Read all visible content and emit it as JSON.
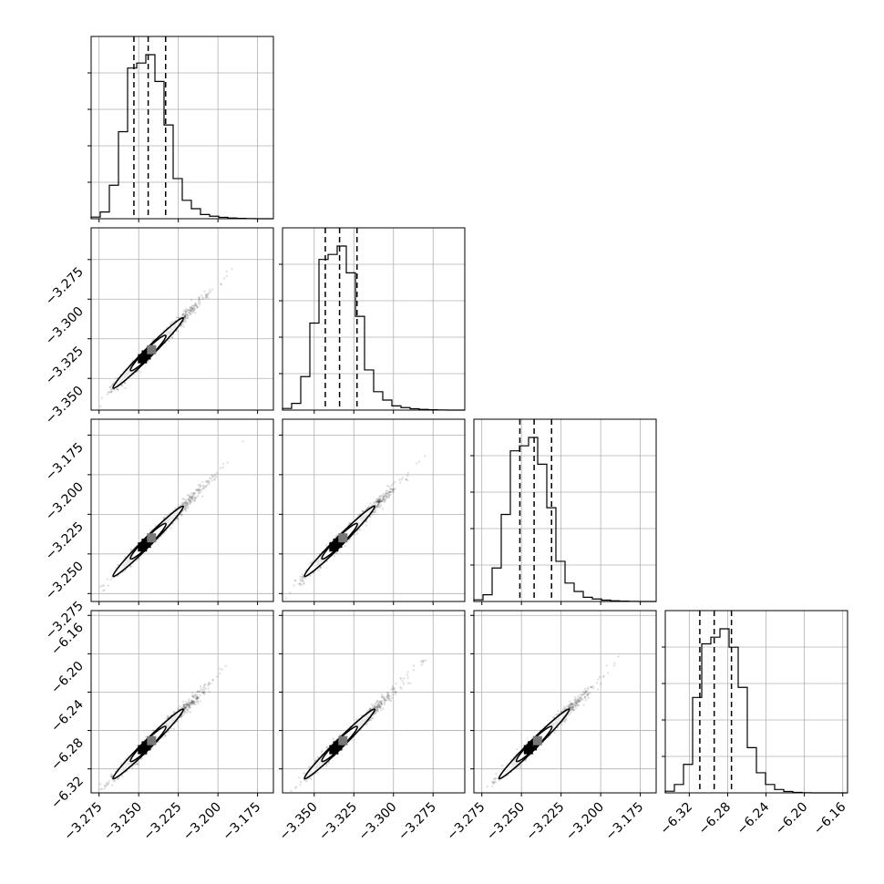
{
  "chart_data": {
    "type": "corner",
    "parameters": [
      {
        "range": [
          -3.28,
          -3.165
        ],
        "ticks": [
          -3.275,
          -3.25,
          -3.225,
          -3.2,
          -3.175
        ],
        "tick_labels": [
          "−3.275",
          "−3.250",
          "−3.225",
          "−3.200",
          "−3.175"
        ],
        "quantiles": [
          -3.253,
          -3.244,
          -3.233
        ],
        "hist": [
          0.01,
          0.04,
          0.2,
          0.52,
          0.9,
          0.93,
          0.98,
          0.82,
          0.56,
          0.24,
          0.11,
          0.06,
          0.025,
          0.015,
          0.008,
          0.004,
          0.002,
          0.001,
          0.0,
          0.0
        ]
      },
      {
        "range": [
          -3.37,
          -3.255
        ],
        "ticks": [
          -3.35,
          -3.325,
          -3.3,
          -3.275
        ],
        "tick_labels": [
          "−3.350",
          "−3.325",
          "−3.300",
          "−3.275"
        ],
        "quantiles": [
          -3.343,
          -3.334,
          -3.323
        ],
        "hist": [
          0.01,
          0.04,
          0.2,
          0.52,
          0.9,
          0.93,
          0.98,
          0.82,
          0.56,
          0.24,
          0.11,
          0.06,
          0.025,
          0.015,
          0.008,
          0.004,
          0.002,
          0.001,
          0.0,
          0.0
        ]
      },
      {
        "range": [
          -3.28,
          -3.165
        ],
        "ticks": [
          -3.275,
          -3.25,
          -3.225,
          -3.2,
          -3.175
        ],
        "tick_labels": [
          "−3.275",
          "−3.250",
          "−3.225",
          "−3.200",
          "−3.175"
        ],
        "quantiles": [
          -3.251,
          -3.242,
          -3.231
        ],
        "hist": [
          0.01,
          0.04,
          0.2,
          0.52,
          0.9,
          0.93,
          0.98,
          0.82,
          0.56,
          0.24,
          0.11,
          0.06,
          0.025,
          0.015,
          0.008,
          0.004,
          0.002,
          0.001,
          0.0,
          0.0
        ]
      },
      {
        "range": [
          -6.345,
          -6.155
        ],
        "ticks": [
          -6.32,
          -6.28,
          -6.24,
          -6.2,
          -6.16
        ],
        "tick_labels": [
          "−6.32",
          "−6.28",
          "−6.24",
          "−6.20",
          "−6.16"
        ],
        "quantiles": [
          -6.309,
          -6.294,
          -6.276
        ],
        "hist": [
          0.01,
          0.05,
          0.17,
          0.57,
          0.89,
          0.93,
          0.98,
          0.87,
          0.63,
          0.27,
          0.12,
          0.05,
          0.02,
          0.008,
          0.003,
          0.001,
          0.0,
          0.0,
          0.0,
          0.0
        ]
      }
    ],
    "centers": [
      -3.244,
      -3.334,
      -3.242,
      -6.294
    ],
    "sigma": [
      0.011,
      0.011,
      0.011,
      0.018
    ],
    "correlation": 0.985,
    "samples_per_panel": 1400,
    "contour_levels": [
      0.39,
      0.86
    ],
    "grid": true,
    "histogram_style": "step",
    "quantile_line_style": "dashed"
  }
}
